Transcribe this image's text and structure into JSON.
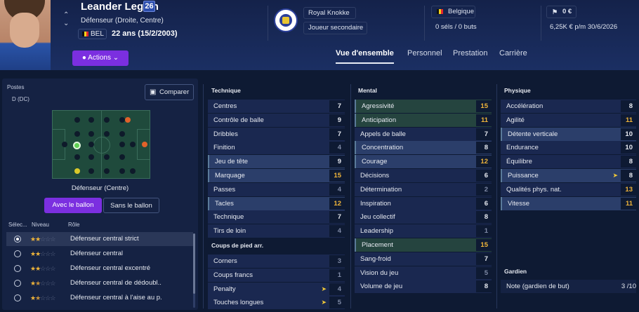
{
  "player": {
    "name": "Leander Legein",
    "number": "26",
    "position_text": "Défenseur (Droite, Centre)",
    "nationality_code": "BEL",
    "age_text": "22 ans (15/2/2003)",
    "actions_label": "Actions"
  },
  "club": {
    "name": "Royal Knokke",
    "role": "Joueur secondaire"
  },
  "nation": {
    "name": "Belgique",
    "caps": "0 séls / 0 buts"
  },
  "value": {
    "amount": "0 €",
    "wage_contract": "6,25K € p/m  30/6/2026"
  },
  "tabs": [
    "Vue d'ensemble",
    "Personnel",
    "Prestation",
    "Carrière"
  ],
  "positions_panel": {
    "title": "Postes",
    "current": "D (DC)",
    "compare_label": "Comparer",
    "pitch_caption": "Défenseur (Centre)",
    "with_ball": "Avec le ballon",
    "without_ball": "Sans le ballon",
    "col_select": "Sélec...",
    "col_level": "Niveau",
    "col_role": "Rôle",
    "roles": [
      {
        "name": "Défenseur central strict",
        "stars": 2.0,
        "selected": true
      },
      {
        "name": "Défenseur central",
        "stars": 2.0,
        "selected": false
      },
      {
        "name": "Défenseur central excentré",
        "stars": 2.0,
        "selected": false
      },
      {
        "name": "Défenseur central de dédoubl...",
        "stars": 1.5,
        "selected": false
      },
      {
        "name": "Défenseur central à l'aise au p...",
        "stars": 1.5,
        "selected": false
      }
    ]
  },
  "technique": {
    "title": "Technique",
    "attrs": [
      {
        "name": "Centres",
        "value": "7"
      },
      {
        "name": "Contrôle de balle",
        "value": "9"
      },
      {
        "name": "Dribbles",
        "value": "7"
      },
      {
        "name": "Finition",
        "value": "4"
      },
      {
        "name": "Jeu de tête",
        "value": "9"
      },
      {
        "name": "Marquage",
        "value": "15"
      },
      {
        "name": "Passes",
        "value": "4"
      },
      {
        "name": "Tacles",
        "value": "12"
      },
      {
        "name": "Technique",
        "value": "7"
      },
      {
        "name": "Tirs de loin",
        "value": "4"
      }
    ]
  },
  "set_pieces": {
    "title": "Coups de pied arr.",
    "attrs": [
      {
        "name": "Corners",
        "value": "3"
      },
      {
        "name": "Coups francs",
        "value": "1"
      },
      {
        "name": "Penalty",
        "value": "4"
      },
      {
        "name": "Touches longues",
        "value": "5"
      }
    ]
  },
  "mental": {
    "title": "Mental",
    "attrs": [
      {
        "name": "Agressivité",
        "value": "15"
      },
      {
        "name": "Anticipation",
        "value": "11"
      },
      {
        "name": "Appels de balle",
        "value": "7"
      },
      {
        "name": "Concentration",
        "value": "8"
      },
      {
        "name": "Courage",
        "value": "12"
      },
      {
        "name": "Décisions",
        "value": "6"
      },
      {
        "name": "Détermination",
        "value": "2"
      },
      {
        "name": "Inspiration",
        "value": "6"
      },
      {
        "name": "Jeu collectif",
        "value": "8"
      },
      {
        "name": "Leadership",
        "value": "1"
      },
      {
        "name": "Placement",
        "value": "15"
      },
      {
        "name": "Sang-froid",
        "value": "7"
      },
      {
        "name": "Vision du jeu",
        "value": "5"
      },
      {
        "name": "Volume de jeu",
        "value": "8"
      }
    ]
  },
  "physique": {
    "title": "Physique",
    "attrs": [
      {
        "name": "Accélération",
        "value": "8"
      },
      {
        "name": "Agilité",
        "value": "11"
      },
      {
        "name": "Détente verticale",
        "value": "10"
      },
      {
        "name": "Endurance",
        "value": "10"
      },
      {
        "name": "Équilibre",
        "value": "8"
      },
      {
        "name": "Puissance",
        "value": "8"
      },
      {
        "name": "Qualités phys. nat.",
        "value": "13"
      },
      {
        "name": "Vitesse",
        "value": "11"
      }
    ]
  },
  "goalkeeper": {
    "title": "Gardien",
    "label": "Note (gardien de but)",
    "value": "3 /10"
  },
  "colors": {
    "background": "#0e1a33",
    "accent": "#7b2fe0",
    "highlight_value": "#f0b53a",
    "key_attribute_bar": "#3f5a3f"
  }
}
